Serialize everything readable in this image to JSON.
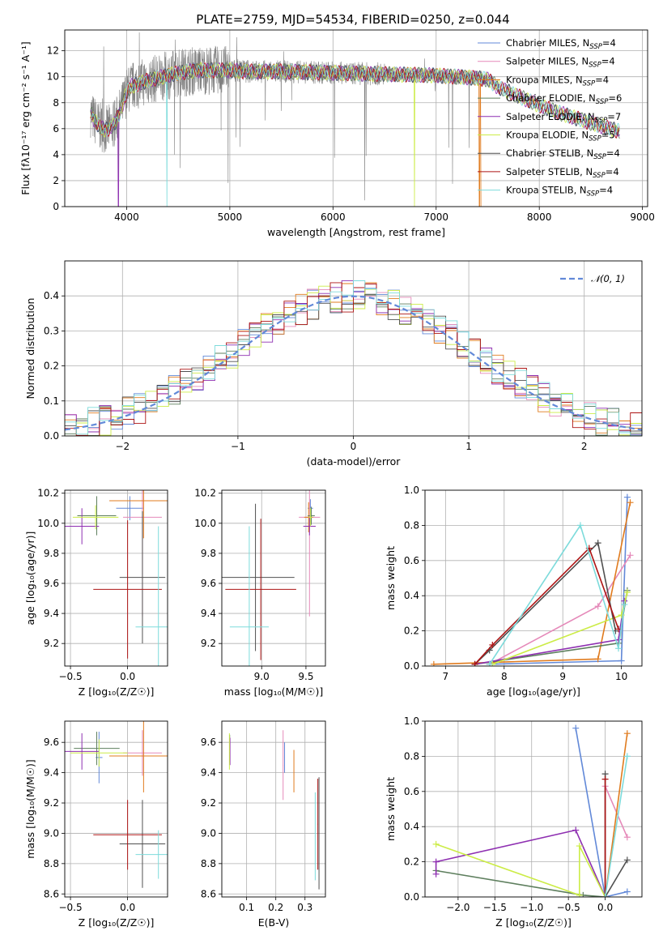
{
  "figure": {
    "title": "PLATE=2759, MJD=54534, FIBERID=0250, z=0.044"
  },
  "models": [
    {
      "name": "Chabrier MILES",
      "nssp": "4",
      "color": "#6289d8"
    },
    {
      "name": "Salpeter MILES",
      "nssp": "4",
      "color": "#e589b9"
    },
    {
      "name": "Kroupa MILES",
      "nssp": "4",
      "color": "#e07b1e"
    },
    {
      "name": "Chabrier ELODIE",
      "nssp": "6",
      "color": "#5e7f5e"
    },
    {
      "name": "Salpeter ELODIE",
      "nssp": "7",
      "color": "#8e2fb1"
    },
    {
      "name": "Kroupa ELODIE",
      "nssp": "5",
      "color": "#ccec47"
    },
    {
      "name": "Chabrier STELIB",
      "nssp": "4",
      "color": "#505050"
    },
    {
      "name": "Salpeter STELIB",
      "nssp": "4",
      "color": "#ad1414"
    },
    {
      "name": "Kroupa STELIB",
      "nssp": "4",
      "color": "#7ddbdb"
    }
  ],
  "chart_data": [
    {
      "id": "spectrum",
      "type": "line",
      "xlabel": "wavelength [Angstrom, rest frame]",
      "ylabel": "Flux [fλ10⁻¹⁷ erg cm⁻² s⁻¹ A⁻¹]",
      "xlim": [
        3400,
        9050
      ],
      "ylim": [
        0,
        13.6
      ],
      "xticks": [
        4000,
        5000,
        6000,
        7000,
        8000,
        9000
      ],
      "yticks": [
        0,
        2,
        4,
        6,
        8,
        10,
        12
      ],
      "data_color": "#808080",
      "data_coverage": [
        3650,
        7500
      ],
      "model_profile": {
        "x": [
          3650,
          3700,
          3750,
          3800,
          3850,
          3900,
          3950,
          4000,
          4050,
          4100,
          4200,
          4300,
          4400,
          4500,
          4700,
          5000,
          5200,
          5500,
          6000,
          6500,
          7000,
          7200,
          7400,
          7500,
          7600,
          7800,
          8000,
          8200,
          8400,
          8600,
          8780
        ],
        "y": [
          7.2,
          6.5,
          6.1,
          5.9,
          6.1,
          6.6,
          7.6,
          8.8,
          9.3,
          9.4,
          9.7,
          9.9,
          10.1,
          10.3,
          10.5,
          10.5,
          10.4,
          10.4,
          10.3,
          10.2,
          10.1,
          10.0,
          9.9,
          9.8,
          9.2,
          8.5,
          7.8,
          7.2,
          6.7,
          6.2,
          5.8
        ]
      },
      "dropouts": [
        {
          "model": "Salpeter ELODIE",
          "x": 3920
        },
        {
          "model": "Kroupa STELIB",
          "x": 4390
        },
        {
          "model": "Kroupa ELODIE",
          "x": 6790
        },
        {
          "model": "Kroupa MILES",
          "x": 7420
        }
      ]
    },
    {
      "id": "residuals",
      "type": "line",
      "xlabel": "(data-model)/error",
      "ylabel": "Normed distribution",
      "xlim": [
        -2.5,
        2.5
      ],
      "ylim": [
        0,
        0.5
      ],
      "xticks": [
        -2,
        -1,
        0,
        1,
        2
      ],
      "yticks": [
        0.0,
        0.1,
        0.2,
        0.3,
        0.4
      ],
      "legend": "𝒩(0, 1)",
      "legend_position": "top-right",
      "gaussian_color": "#6289d8"
    },
    {
      "id": "age-vs-Z",
      "type": "scatter",
      "xlabel": "Z [log₁₀(Z/Z☉)]",
      "ylabel": "age  [log₁₀(age/yr)]",
      "xlim": [
        -0.55,
        0.35
      ],
      "ylim": [
        9.05,
        10.22
      ],
      "xticks": [
        -0.5,
        0.0
      ],
      "yticks": [
        9.2,
        9.4,
        9.6,
        9.8,
        10.0,
        10.2
      ],
      "points": [
        {
          "model": "Chabrier MILES",
          "x": 0.02,
          "xerr": 0.12,
          "y": 10.1,
          "yerr": 0.08
        },
        {
          "model": "Salpeter MILES",
          "x": 0.13,
          "xerr": 0.17,
          "y": 10.04,
          "yerr": 0.66
        },
        {
          "model": "Kroupa MILES",
          "x": 0.14,
          "xerr": 0.3,
          "y": 10.15,
          "yerr": 0.25
        },
        {
          "model": "Chabrier ELODIE",
          "x": -0.27,
          "xerr": 0.17,
          "y": 10.05,
          "yerr": 0.13
        },
        {
          "model": "Salpeter ELODIE",
          "x": -0.4,
          "xerr": 0.15,
          "y": 9.98,
          "yerr": 0.12
        },
        {
          "model": "Kroupa ELODIE",
          "x": -0.28,
          "xerr": 0.2,
          "y": 10.04,
          "yerr": 0.08
        },
        {
          "model": "Chabrier STELIB",
          "x": 0.13,
          "xerr": 0.2,
          "y": 9.64,
          "yerr": 0.44
        },
        {
          "model": "Salpeter STELIB",
          "x": 0.0,
          "xerr": 0.3,
          "y": 9.56,
          "yerr": 0.46
        },
        {
          "model": "Kroupa STELIB",
          "x": 0.27,
          "xerr": 0.2,
          "y": 9.31,
          "yerr": 0.67
        }
      ]
    },
    {
      "id": "age-vs-mass",
      "type": "scatter",
      "xlabel": "mass [log₁₀(M/M☉)]",
      "ylabel": "",
      "xlim": [
        8.55,
        9.72
      ],
      "ylim": [
        9.05,
        10.22
      ],
      "xticks": [
        9.0,
        9.5
      ],
      "yticks": [
        9.2,
        9.4,
        9.6,
        9.8,
        10.0,
        10.2
      ],
      "points": [
        {
          "model": "Chabrier MILES",
          "x": 9.55,
          "xerr": 0.03,
          "y": 10.1,
          "yerr": 0.06
        },
        {
          "model": "Salpeter MILES",
          "x": 9.54,
          "xerr": 0.12,
          "y": 10.04,
          "yerr": 0.66
        },
        {
          "model": "Kroupa MILES",
          "x": 9.53,
          "xerr": 0.05,
          "y": 10.04,
          "yerr": 0.1
        },
        {
          "model": "Chabrier ELODIE",
          "x": 9.56,
          "xerr": 0.04,
          "y": 10.05,
          "yerr": 0.06
        },
        {
          "model": "Salpeter ELODIE",
          "x": 9.54,
          "xerr": 0.07,
          "y": 9.98,
          "yerr": 0.06
        },
        {
          "model": "Kroupa ELODIE",
          "x": 9.55,
          "xerr": 0.02,
          "y": 10.04,
          "yerr": 0.06
        },
        {
          "model": "Chabrier STELIB",
          "x": 8.93,
          "xerr": 0.44,
          "y": 9.64,
          "yerr": 0.49
        },
        {
          "model": "Salpeter STELIB",
          "x": 8.99,
          "xerr": 0.4,
          "y": 9.56,
          "yerr": 0.47
        },
        {
          "model": "Kroupa STELIB",
          "x": 8.86,
          "xerr": 0.22,
          "y": 9.31,
          "yerr": 0.67
        }
      ]
    },
    {
      "id": "weight-vs-age",
      "type": "line",
      "xlabel": "age  [log₁₀(age/yr)]",
      "ylabel": "mass weight",
      "xlim": [
        6.65,
        10.35
      ],
      "ylim": [
        0,
        1
      ],
      "xticks": [
        7,
        8,
        9,
        10
      ],
      "yticks": [
        0.0,
        0.2,
        0.4,
        0.6,
        0.8,
        1.0
      ],
      "series": [
        {
          "model": "Chabrier MILES",
          "x": [
            7.75,
            10.0,
            10.1
          ],
          "y": [
            0.01,
            0.03,
            0.96
          ]
        },
        {
          "model": "Salpeter MILES",
          "x": [
            7.75,
            9.6,
            10.15
          ],
          "y": [
            0.01,
            0.34,
            0.63
          ]
        },
        {
          "model": "Kroupa MILES",
          "x": [
            6.8,
            9.6,
            10.15
          ],
          "y": [
            0.01,
            0.04,
            0.93
          ]
        },
        {
          "model": "Chabrier ELODIE",
          "x": [
            7.5,
            9.95,
            10.1
          ],
          "y": [
            0.01,
            0.13,
            0.43
          ]
        },
        {
          "model": "Salpeter ELODIE",
          "x": [
            7.5,
            9.95,
            10.05
          ],
          "y": [
            0.01,
            0.15,
            0.37
          ]
        },
        {
          "model": "Kroupa ELODIE",
          "x": [
            7.8,
            10.0,
            10.1
          ],
          "y": [
            0.01,
            0.29,
            0.42
          ]
        },
        {
          "model": "Chabrier STELIB",
          "x": [
            7.5,
            7.75,
            9.6,
            9.9
          ],
          "y": [
            0.01,
            0.09,
            0.7,
            0.2
          ]
        },
        {
          "model": "Salpeter STELIB",
          "x": [
            7.5,
            7.8,
            9.45,
            9.95
          ],
          "y": [
            0.01,
            0.12,
            0.67,
            0.21
          ]
        },
        {
          "model": "Kroupa STELIB",
          "x": [
            7.75,
            9.3,
            9.95,
            10.05
          ],
          "y": [
            0.01,
            0.8,
            0.1,
            0.35
          ]
        }
      ]
    },
    {
      "id": "mass-vs-Z",
      "type": "scatter",
      "xlabel": "Z [log₁₀(Z/Z☉)]",
      "ylabel": "mass [log₁₀(M/M☉)]",
      "xlim": [
        -0.55,
        0.35
      ],
      "ylim": [
        8.58,
        9.74
      ],
      "xticks": [
        -0.5,
        0.0
      ],
      "yticks": [
        8.6,
        8.8,
        9.0,
        9.2,
        9.4,
        9.6
      ],
      "points": [
        {
          "model": "Chabrier MILES",
          "x": -0.25,
          "xerr": 0.03,
          "y": 9.5,
          "yerr": 0.17
        },
        {
          "model": "Salpeter MILES",
          "x": 0.13,
          "xerr": 0.17,
          "y": 9.53,
          "yerr": 0.15
        },
        {
          "model": "Kroupa MILES",
          "x": 0.14,
          "xerr": 0.3,
          "y": 9.51,
          "yerr": 0.24
        },
        {
          "model": "Chabrier ELODIE",
          "x": -0.27,
          "xerr": 0.2,
          "y": 9.56,
          "yerr": 0.11
        },
        {
          "model": "Salpeter ELODIE",
          "x": -0.4,
          "xerr": 0.15,
          "y": 9.54,
          "yerr": 0.12
        },
        {
          "model": "Kroupa ELODIE",
          "x": -0.25,
          "xerr": 0.25,
          "y": 9.53,
          "yerr": 0.09
        },
        {
          "model": "Chabrier STELIB",
          "x": 0.13,
          "xerr": 0.2,
          "y": 8.93,
          "yerr": 0.29
        },
        {
          "model": "Salpeter STELIB",
          "x": 0.0,
          "xerr": 0.3,
          "y": 8.99,
          "yerr": 0.23
        },
        {
          "model": "Kroupa STELIB",
          "x": 0.27,
          "xerr": 0.2,
          "y": 8.86,
          "yerr": 0.16
        }
      ]
    },
    {
      "id": "mass-vs-ebv",
      "type": "scatter",
      "xlabel": "E(B-V)",
      "ylabel": "",
      "xlim": [
        0.015,
        0.37
      ],
      "ylim": [
        8.58,
        9.74
      ],
      "xticks": [
        0.1,
        0.2,
        0.3
      ],
      "yticks": [
        8.6,
        8.8,
        9.0,
        9.2,
        9.4,
        9.6
      ],
      "points": [
        {
          "model": "Chabrier MILES",
          "x": 0.23,
          "xerr": 0.001,
          "y": 9.5,
          "yerr": 0.1
        },
        {
          "model": "Salpeter MILES",
          "x": 0.225,
          "xerr": 0.001,
          "y": 9.45,
          "yerr": 0.23
        },
        {
          "model": "Kroupa MILES",
          "x": 0.262,
          "xerr": 0.001,
          "y": 9.41,
          "yerr": 0.14
        },
        {
          "model": "Chabrier ELODIE",
          "x": 0.042,
          "xerr": 0.001,
          "y": 9.56,
          "yerr": 0.09
        },
        {
          "model": "Salpeter ELODIE",
          "x": 0.043,
          "xerr": 0.001,
          "y": 9.54,
          "yerr": 0.09
        },
        {
          "model": "Kroupa ELODIE",
          "x": 0.041,
          "xerr": 0.001,
          "y": 9.54,
          "yerr": 0.12
        },
        {
          "model": "Chabrier STELIB",
          "x": 0.348,
          "xerr": 0.001,
          "y": 9.0,
          "yerr": 0.37
        },
        {
          "model": "Salpeter STELIB",
          "x": 0.344,
          "xerr": 0.001,
          "y": 9.06,
          "yerr": 0.3
        },
        {
          "model": "Kroupa STELIB",
          "x": 0.335,
          "xerr": 0.001,
          "y": 8.98,
          "yerr": 0.29
        }
      ]
    },
    {
      "id": "weight-vs-Z",
      "type": "line",
      "xlabel": "Z [log₁₀(Z/Z☉)]",
      "ylabel": "mass weight",
      "xlim": [
        -2.45,
        0.5
      ],
      "ylim": [
        0,
        1
      ],
      "xticks": [
        -2.0,
        -1.5,
        -1.0,
        -0.5,
        0.0
      ],
      "yticks": [
        0.0,
        0.2,
        0.4,
        0.6,
        0.8,
        1.0
      ],
      "series": [
        {
          "model": "Chabrier MILES",
          "x": [
            -0.4,
            0.0,
            0.3
          ],
          "y": [
            0.96,
            0.0,
            0.03
          ]
        },
        {
          "model": "Salpeter MILES",
          "x": [
            0.0,
            0.0,
            0.3
          ],
          "y": [
            0.0,
            0.63,
            0.34
          ]
        },
        {
          "model": "Kroupa MILES",
          "x": [
            0.0,
            0.3
          ],
          "y": [
            0.0,
            0.93
          ]
        },
        {
          "model": "Chabrier ELODIE",
          "x": [
            -2.3,
            -0.3,
            0.0
          ],
          "y": [
            0.15,
            0.01,
            0.0
          ]
        },
        {
          "model": "Salpeter ELODIE",
          "x": [
            -2.3,
            -2.3,
            -0.4,
            0.0
          ],
          "y": [
            0.13,
            0.2,
            0.38,
            0.0
          ]
        },
        {
          "model": "Kroupa ELODIE",
          "x": [
            -2.3,
            -0.35,
            -0.35,
            0.0
          ],
          "y": [
            0.3,
            0.01,
            0.29,
            0.0
          ]
        },
        {
          "model": "Chabrier STELIB",
          "x": [
            0.0,
            0.0,
            0.3
          ],
          "y": [
            0.7,
            0.0,
            0.21
          ]
        },
        {
          "model": "Salpeter STELIB",
          "x": [
            0.0,
            0.0
          ],
          "y": [
            0.0,
            0.67
          ]
        },
        {
          "model": "Kroupa STELIB",
          "x": [
            0.0,
            0.3
          ],
          "y": [
            0.0,
            0.8
          ]
        }
      ]
    }
  ]
}
